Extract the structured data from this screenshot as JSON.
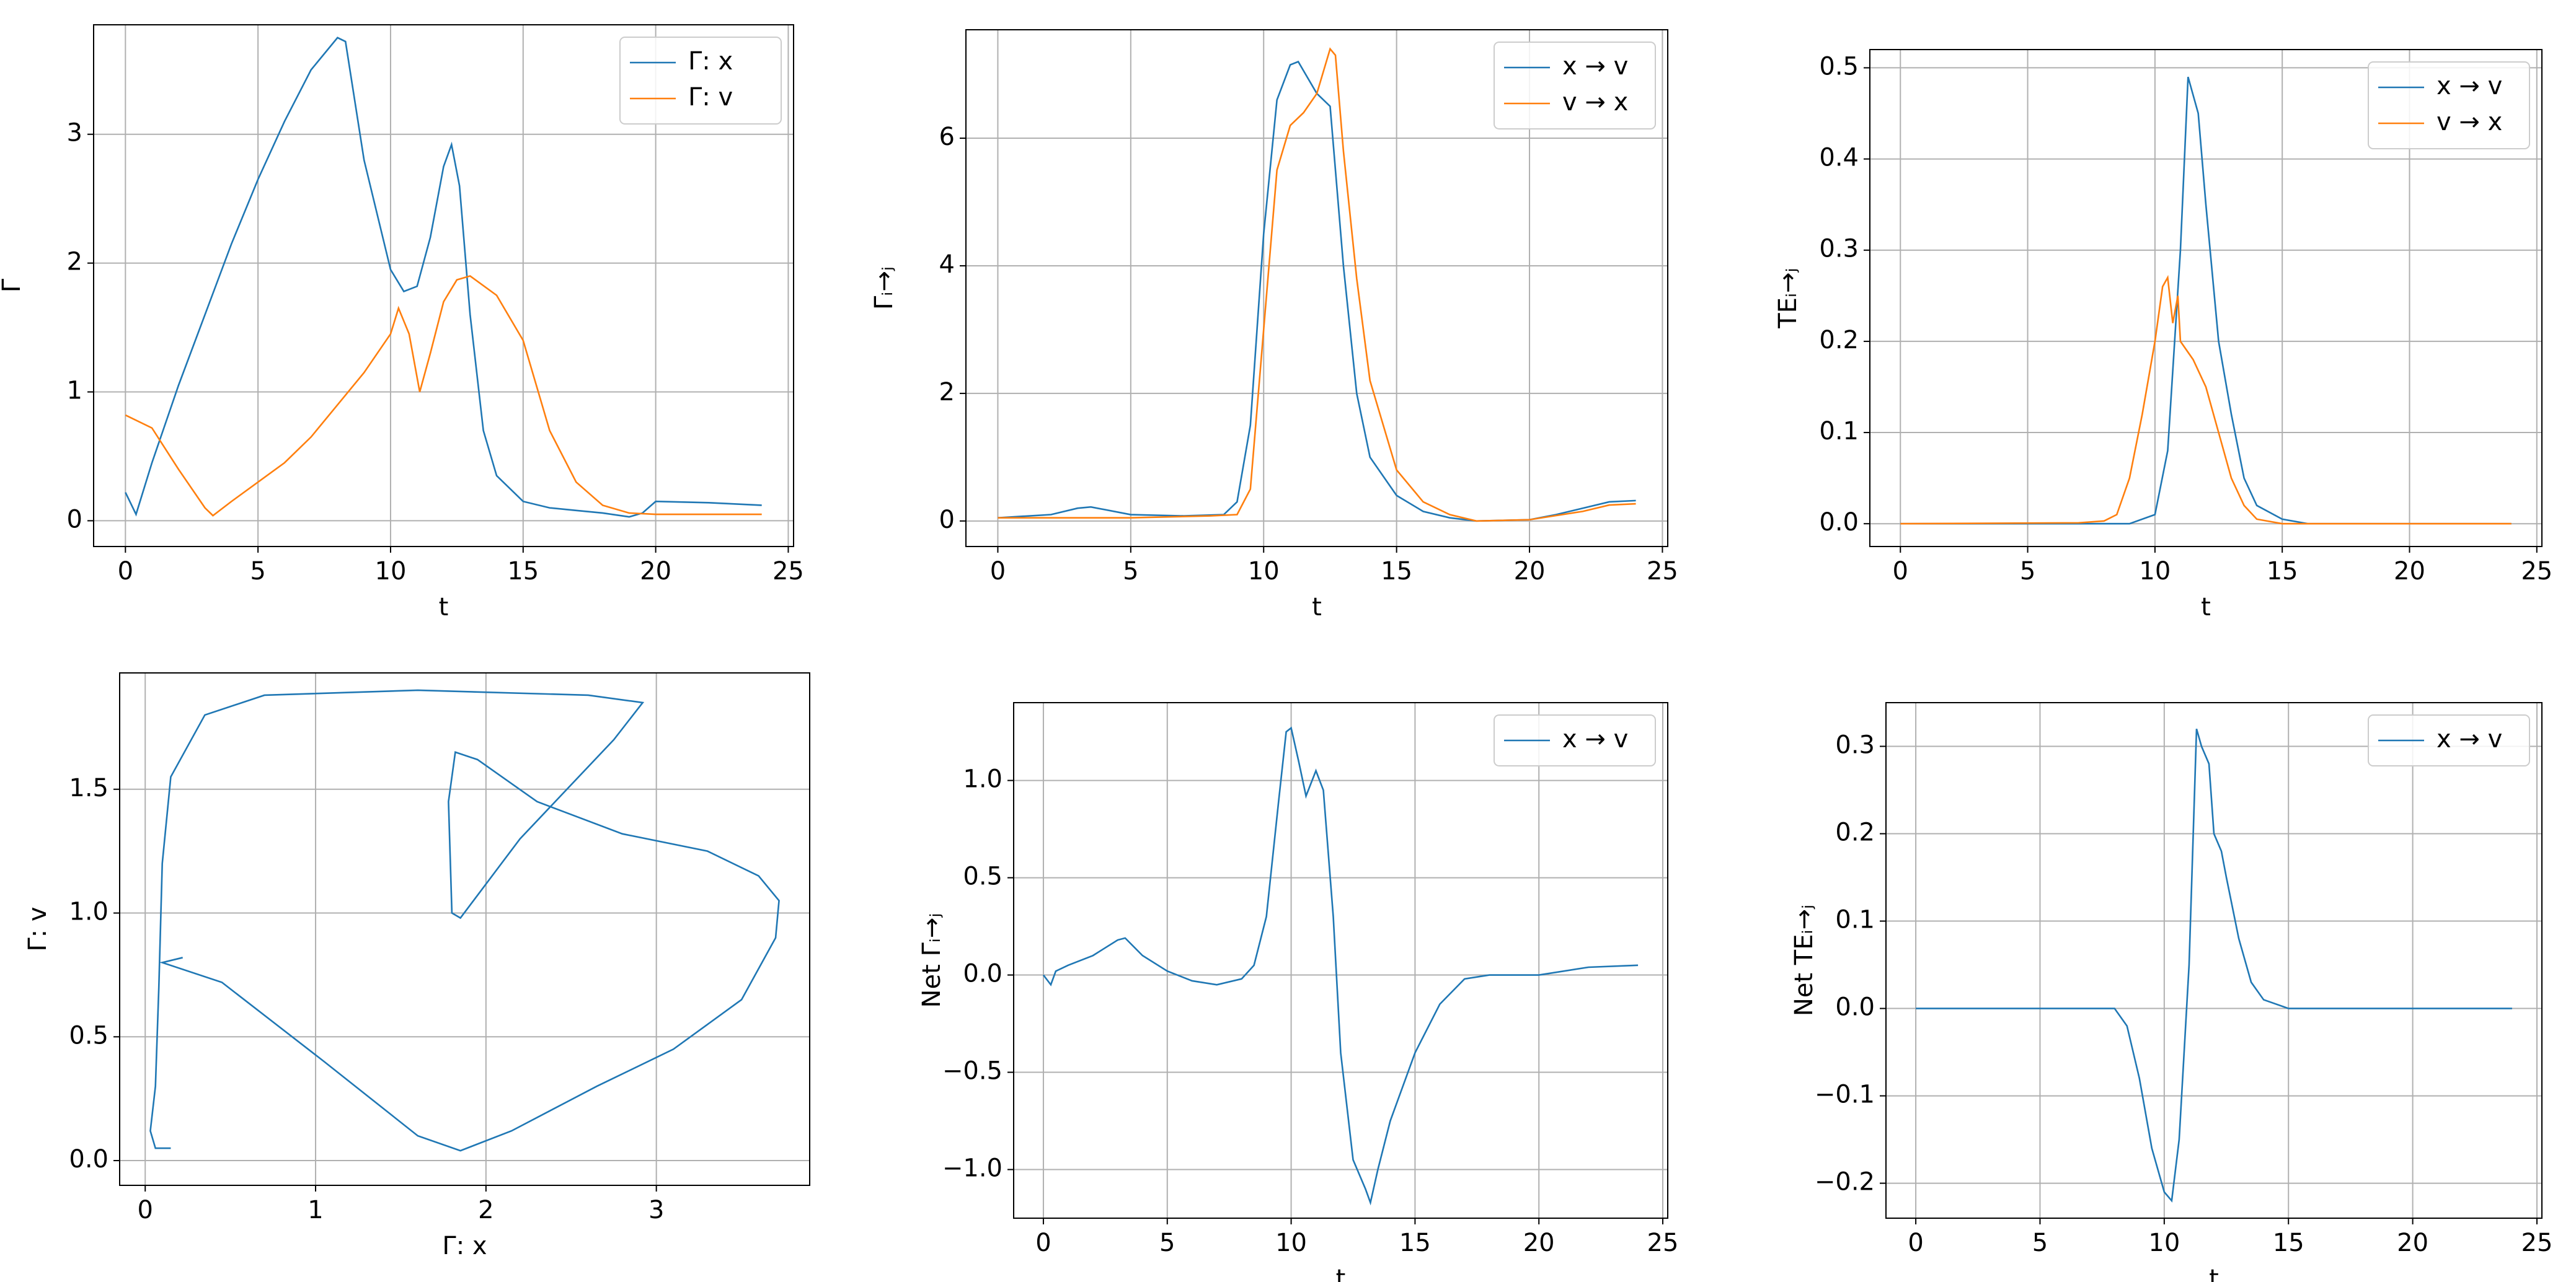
{
  "chart_data": [
    {
      "type": "line",
      "xlabel": "t",
      "ylabel": "Γ",
      "xlim": [
        -1.2,
        25.2
      ],
      "ylim": [
        -0.2,
        3.85
      ],
      "xticks": [
        0,
        5,
        10,
        15,
        20,
        25
      ],
      "yticks": [
        0,
        1,
        2,
        3
      ],
      "grid": true,
      "legend": "upper right",
      "series": [
        {
          "name": "Γ: x",
          "color": "#1f77b4",
          "x": [
            0,
            0.4,
            1,
            2,
            3,
            4,
            5,
            6,
            7,
            8,
            8.3,
            9,
            10,
            10.5,
            11,
            11.5,
            12,
            12.3,
            12.6,
            13,
            13.5,
            14,
            15,
            16,
            17,
            18,
            19,
            19.5,
            20,
            22,
            24
          ],
          "values": [
            0.22,
            0.05,
            0.45,
            1.05,
            1.6,
            2.15,
            2.65,
            3.1,
            3.5,
            3.75,
            3.72,
            2.8,
            1.95,
            1.78,
            1.82,
            2.2,
            2.75,
            2.92,
            2.6,
            1.6,
            0.7,
            0.35,
            0.15,
            0.1,
            0.08,
            0.06,
            0.03,
            0.06,
            0.15,
            0.14,
            0.12
          ]
        },
        {
          "name": "Γ: v",
          "color": "#ff7f0e",
          "x": [
            0,
            1,
            2,
            3,
            3.3,
            4,
            5,
            6,
            7,
            8,
            9,
            10,
            10.3,
            10.7,
            11.1,
            11.5,
            12,
            12.5,
            13,
            14,
            15,
            16,
            17,
            18,
            19,
            20,
            24
          ],
          "values": [
            0.82,
            0.72,
            0.4,
            0.1,
            0.04,
            0.15,
            0.3,
            0.45,
            0.65,
            0.9,
            1.15,
            1.45,
            1.65,
            1.45,
            1.0,
            1.3,
            1.7,
            1.87,
            1.9,
            1.75,
            1.4,
            0.7,
            0.3,
            0.12,
            0.06,
            0.05,
            0.05
          ]
        }
      ]
    },
    {
      "type": "line",
      "xlabel": "t",
      "ylabel": "Γᵢ→ⱼ",
      "xlim": [
        -1.2,
        25.2
      ],
      "ylim": [
        -0.4,
        7.7
      ],
      "xticks": [
        0,
        5,
        10,
        15,
        20,
        25
      ],
      "yticks": [
        0,
        2,
        4,
        6
      ],
      "grid": true,
      "legend": "upper right",
      "series": [
        {
          "name": "x → v",
          "color": "#1f77b4",
          "x": [
            0,
            2,
            3,
            3.5,
            5,
            7,
            8.5,
            9,
            9.5,
            10,
            10.5,
            11,
            11.3,
            12,
            12.5,
            13,
            13.5,
            14,
            15,
            16,
            17,
            18,
            20,
            21,
            22,
            23,
            24
          ],
          "values": [
            0.05,
            0.1,
            0.2,
            0.22,
            0.1,
            0.08,
            0.1,
            0.3,
            1.5,
            4.5,
            6.6,
            7.15,
            7.2,
            6.7,
            6.5,
            4.0,
            2.0,
            1.0,
            0.4,
            0.15,
            0.05,
            0.0,
            0.02,
            0.1,
            0.2,
            0.3,
            0.32
          ]
        },
        {
          "name": "v → x",
          "color": "#ff7f0e",
          "x": [
            0,
            3,
            5,
            8,
            9,
            9.5,
            10,
            10.5,
            11,
            11.5,
            12,
            12.5,
            12.7,
            13,
            13.5,
            14,
            15,
            16,
            17,
            18,
            20,
            22,
            23,
            24
          ],
          "values": [
            0.05,
            0.05,
            0.05,
            0.08,
            0.1,
            0.5,
            3.0,
            5.5,
            6.2,
            6.4,
            6.7,
            7.4,
            7.3,
            5.8,
            3.8,
            2.2,
            0.8,
            0.3,
            0.1,
            0.0,
            0.02,
            0.15,
            0.25,
            0.27
          ]
        }
      ]
    },
    {
      "type": "line",
      "xlabel": "t",
      "ylabel": "TEᵢ→ⱼ",
      "xlim": [
        -1.2,
        25.2
      ],
      "ylim": [
        -0.025,
        0.52
      ],
      "xticks": [
        0,
        5,
        10,
        15,
        20,
        25
      ],
      "yticks": [
        {
          "value": 0,
          "label": "0.0"
        },
        0.1,
        0.2,
        0.3,
        0.4,
        0.5
      ],
      "grid": true,
      "legend": "upper right",
      "series": [
        {
          "name": "x → v",
          "color": "#1f77b4",
          "x": [
            0,
            8,
            9,
            10,
            10.5,
            11,
            11.3,
            11.5,
            11.7,
            12,
            12.5,
            13,
            13.5,
            14,
            15,
            16,
            24
          ],
          "values": [
            0,
            0,
            0,
            0.01,
            0.08,
            0.3,
            0.49,
            0.47,
            0.45,
            0.35,
            0.2,
            0.12,
            0.05,
            0.02,
            0.005,
            0,
            0
          ]
        },
        {
          "name": "v → x",
          "color": "#ff7f0e",
          "x": [
            0,
            7,
            8,
            8.5,
            9,
            9.5,
            10,
            10.3,
            10.5,
            10.7,
            10.9,
            11,
            11.5,
            12,
            12.5,
            13,
            13.5,
            14,
            15,
            24
          ],
          "values": [
            0,
            0.001,
            0.003,
            0.01,
            0.05,
            0.12,
            0.2,
            0.26,
            0.27,
            0.22,
            0.25,
            0.2,
            0.18,
            0.15,
            0.1,
            0.05,
            0.02,
            0.005,
            0,
            0
          ]
        }
      ]
    },
    {
      "type": "line",
      "xlabel": "Γ: x",
      "ylabel": "Γ: v",
      "xlim": [
        -0.15,
        3.9
      ],
      "ylim": [
        -0.1,
        1.97
      ],
      "xticks": [
        0,
        1,
        2,
        3
      ],
      "yticks": [
        {
          "value": 0,
          "label": "0.0"
        },
        0.5,
        {
          "value": 1,
          "label": "1.0"
        },
        1.5
      ],
      "grid": true,
      "series": [
        {
          "color": "#1f77b4",
          "x": [
            0.22,
            0.1,
            0.45,
            1.05,
            1.6,
            1.85,
            2.15,
            2.65,
            3.1,
            3.5,
            3.7,
            3.72,
            3.6,
            3.3,
            2.8,
            2.3,
            1.95,
            1.82,
            1.78,
            1.8,
            1.85,
            2.2,
            2.75,
            2.92,
            2.6,
            1.6,
            0.7,
            0.35,
            0.15,
            0.1,
            0.08,
            0.06,
            0.03,
            0.06,
            0.15
          ],
          "values": [
            0.82,
            0.8,
            0.72,
            0.4,
            0.1,
            0.04,
            0.12,
            0.3,
            0.45,
            0.65,
            0.9,
            1.05,
            1.15,
            1.25,
            1.32,
            1.45,
            1.62,
            1.65,
            1.45,
            1.0,
            0.98,
            1.3,
            1.7,
            1.85,
            1.88,
            1.9,
            1.88,
            1.8,
            1.55,
            1.2,
            0.7,
            0.3,
            0.12,
            0.05,
            0.05
          ]
        }
      ]
    },
    {
      "type": "line",
      "xlabel": "t",
      "ylabel": "Net Γᵢ→ⱼ",
      "xlim": [
        -1.2,
        25.2
      ],
      "ylim": [
        -1.25,
        1.4
      ],
      "xticks": [
        0,
        5,
        10,
        15,
        20,
        25
      ],
      "yticks": [
        {
          "value": -1,
          "label": "−1.0"
        },
        {
          "value": -0.5,
          "label": "−0.5"
        },
        {
          "value": 0,
          "label": "0.0"
        },
        0.5,
        {
          "value": 1,
          "label": "1.0"
        }
      ],
      "grid": true,
      "legend": "upper right",
      "series": [
        {
          "name": "x → v",
          "color": "#1f77b4",
          "x": [
            0,
            0.3,
            0.5,
            1,
            2,
            3,
            3.3,
            4,
            5,
            6,
            7,
            8,
            8.5,
            9,
            9.5,
            9.8,
            10,
            10.3,
            10.6,
            11,
            11.3,
            11.7,
            12,
            12.5,
            13,
            13.2,
            13.5,
            14,
            15,
            16,
            17,
            18,
            20,
            22,
            24
          ],
          "values": [
            0,
            -0.05,
            0.02,
            0.05,
            0.1,
            0.18,
            0.19,
            0.1,
            0.02,
            -0.03,
            -0.05,
            -0.02,
            0.05,
            0.3,
            0.9,
            1.25,
            1.27,
            1.1,
            0.92,
            1.05,
            0.95,
            0.3,
            -0.4,
            -0.95,
            -1.1,
            -1.17,
            -1.0,
            -0.75,
            -0.4,
            -0.15,
            -0.02,
            0,
            0,
            0.04,
            0.05
          ]
        }
      ]
    },
    {
      "type": "line",
      "xlabel": "t",
      "ylabel": "Net TEᵢ→ⱼ",
      "xlim": [
        -1.2,
        25.2
      ],
      "ylim": [
        -0.24,
        0.35
      ],
      "xticks": [
        0,
        5,
        10,
        15,
        20,
        25
      ],
      "yticks": [
        {
          "value": -0.2,
          "label": "−0.2"
        },
        {
          "value": -0.1,
          "label": "−0.1"
        },
        {
          "value": 0,
          "label": "0.0"
        },
        0.1,
        0.2,
        0.3
      ],
      "grid": true,
      "legend": "upper right",
      "series": [
        {
          "name": "x → v",
          "color": "#1f77b4",
          "x": [
            0,
            8,
            8.5,
            9,
            9.5,
            10,
            10.3,
            10.6,
            11,
            11.3,
            11.5,
            11.8,
            12,
            12.3,
            12.5,
            13,
            13.5,
            14,
            15,
            24
          ],
          "values": [
            0,
            0,
            -0.02,
            -0.08,
            -0.16,
            -0.21,
            -0.22,
            -0.15,
            0.05,
            0.32,
            0.3,
            0.28,
            0.2,
            0.18,
            0.15,
            0.08,
            0.03,
            0.01,
            0,
            0
          ]
        }
      ]
    }
  ]
}
